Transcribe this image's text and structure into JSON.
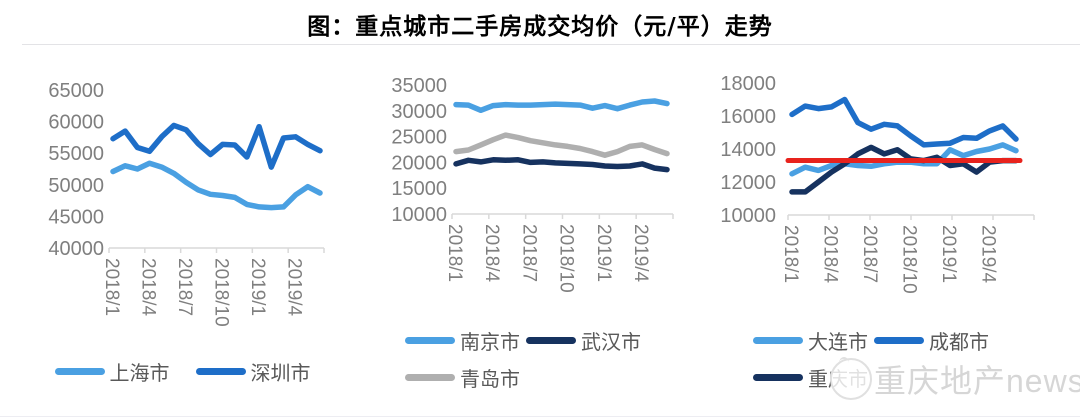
{
  "title": "图：重点城市二手房成交均价（元/平）走势",
  "watermark": {
    "text": "重庆地产news",
    "logo_icon": "mascot-face-logo"
  },
  "colors": {
    "light_blue": "#4aa0e2",
    "medium_blue": "#1e6ec8",
    "navy": "#16325f",
    "gray": "#afafaf",
    "red": "#e8231d",
    "axis_text": "#7f7f7f",
    "axis_line": "#d9d9d9",
    "legend_text": "#595959"
  },
  "chart_data": [
    {
      "type": "line",
      "x": [
        "2018/1",
        "2018/2",
        "2018/3",
        "2018/4",
        "2018/5",
        "2018/6",
        "2018/7",
        "2018/8",
        "2018/9",
        "2018/10",
        "2018/11",
        "2018/12",
        "2019/1",
        "2019/2",
        "2019/3",
        "2019/4",
        "2019/5",
        "2019/6"
      ],
      "x_tick_labels": [
        "2018/1",
        "2018/4",
        "2018/7",
        "2018/10",
        "2019/1",
        "2019/4"
      ],
      "ylim": [
        40000,
        65000
      ],
      "ytick_step": 5000,
      "grid": false,
      "legend_position": "bottom",
      "series": [
        {
          "name": "上海市",
          "color": "light_blue",
          "values": [
            52100,
            53000,
            52500,
            53400,
            52800,
            51800,
            50400,
            49200,
            48500,
            48300,
            48000,
            46900,
            46500,
            46400,
            46500,
            48400,
            49700,
            48700
          ]
        },
        {
          "name": "深圳市",
          "color": "medium_blue",
          "values": [
            57300,
            58500,
            55900,
            55300,
            57600,
            59400,
            58700,
            56500,
            54800,
            56400,
            56300,
            54400,
            59200,
            52800,
            57400,
            57600,
            56400,
            55400
          ]
        }
      ],
      "legend_rows": [
        [
          "上海市",
          "深圳市"
        ]
      ]
    },
    {
      "type": "line",
      "x": [
        "2018/1",
        "2018/2",
        "2018/3",
        "2018/4",
        "2018/5",
        "2018/6",
        "2018/7",
        "2018/8",
        "2018/9",
        "2018/10",
        "2018/11",
        "2018/12",
        "2019/1",
        "2019/2",
        "2019/3",
        "2019/4",
        "2019/5",
        "2019/6"
      ],
      "x_tick_labels": [
        "2018/1",
        "2018/4",
        "2018/7",
        "2018/10",
        "2019/1",
        "2019/4"
      ],
      "ylim": [
        10000,
        35000
      ],
      "ytick_step": 5000,
      "grid": false,
      "legend_position": "bottom",
      "series": [
        {
          "name": "南京市",
          "color": "light_blue",
          "values": [
            31200,
            31100,
            30100,
            31000,
            31200,
            31100,
            31100,
            31200,
            31300,
            31200,
            31100,
            30500,
            31000,
            30400,
            31100,
            31700,
            31900,
            31400
          ]
        },
        {
          "name": "武汉市",
          "color": "navy",
          "values": [
            19700,
            20400,
            20100,
            20500,
            20400,
            20500,
            20000,
            20100,
            19900,
            19800,
            19700,
            19600,
            19300,
            19200,
            19300,
            19700,
            18900,
            18600
          ]
        },
        {
          "name": "青岛市",
          "color": "gray",
          "values": [
            22100,
            22400,
            23400,
            24400,
            25300,
            24800,
            24200,
            23800,
            23400,
            23100,
            22700,
            22100,
            21400,
            22100,
            23100,
            23400,
            22500,
            21700
          ]
        }
      ],
      "legend_rows": [
        [
          "南京市",
          "武汉市"
        ],
        [
          "青岛市"
        ]
      ]
    },
    {
      "type": "line",
      "x": [
        "2018/1",
        "2018/2",
        "2018/3",
        "2018/4",
        "2018/5",
        "2018/6",
        "2018/7",
        "2018/8",
        "2018/9",
        "2018/10",
        "2018/11",
        "2018/12",
        "2019/1",
        "2019/2",
        "2019/3",
        "2019/4",
        "2019/5",
        "2019/6"
      ],
      "x_tick_labels": [
        "2018/1",
        "2018/4",
        "2018/7",
        "2018/10",
        "2019/1",
        "2019/4"
      ],
      "ylim": [
        10000,
        18000
      ],
      "ytick_step": 2000,
      "grid": false,
      "legend_position": "bottom",
      "series": [
        {
          "name": "大连市",
          "color": "light_blue",
          "values": [
            12500,
            12900,
            12700,
            13000,
            13100,
            13000,
            12950,
            13100,
            13200,
            13200,
            13100,
            13100,
            13950,
            13600,
            13850,
            14000,
            14250,
            13900
          ]
        },
        {
          "name": "成都市",
          "color": "medium_blue",
          "values": [
            16100,
            16600,
            16450,
            16550,
            17000,
            15600,
            15200,
            15500,
            15400,
            14800,
            14250,
            14300,
            14350,
            14700,
            14650,
            15100,
            15400,
            14600
          ]
        },
        {
          "name": "重庆市",
          "color": "navy",
          "values": [
            11400,
            11400,
            12000,
            12600,
            13100,
            13700,
            14100,
            13700,
            13950,
            13400,
            13300,
            13500,
            13000,
            13100,
            12600,
            13200,
            13300,
            13300
          ]
        }
      ],
      "ref_line": {
        "value": 13300,
        "color": "red"
      },
      "legend_rows": [
        [
          "大连市",
          "成都市"
        ],
        [
          "重庆市"
        ]
      ]
    }
  ]
}
